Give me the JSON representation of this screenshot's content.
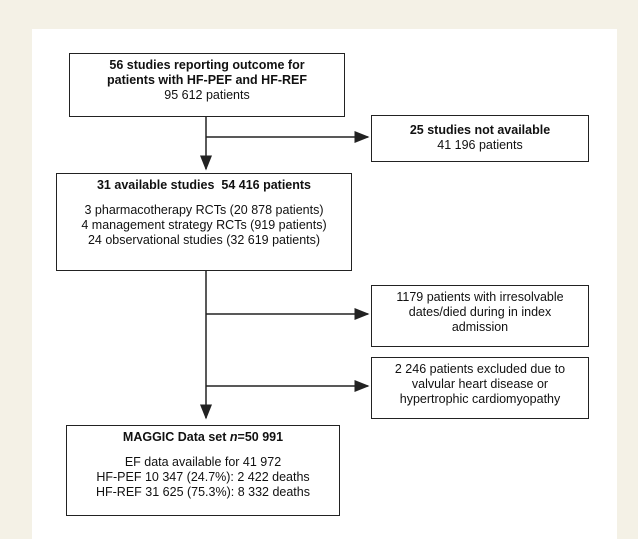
{
  "boxes": {
    "top": {
      "line1": "56 studies reporting outcome for",
      "line2": "patients with HF-PEF and HF-REF",
      "line3": "95 612 patients"
    },
    "not_available": {
      "line1": "25 studies not available",
      "line2": "41 196 patients"
    },
    "available": {
      "title_a": "31 available studies",
      "title_b": "54 416 patients",
      "items": [
        "3 pharmacotherapy RCTs (20 878 patients)",
        "4 management strategy RCTs (919 patients)",
        "24 observational studies (32 619 patients)"
      ]
    },
    "irresolvable": {
      "line1": "1179 patients with irresolvable",
      "line2": "dates/died during in index",
      "line3": "admission"
    },
    "excluded": {
      "line1": "2 246 patients excluded due to",
      "line2": "valvular heart disease or",
      "line3": "hypertrophic cardiomyopathy"
    },
    "maggic": {
      "title_prefix": "MAGGIC Data set ",
      "title_n": "n",
      "title_suffix": "=50 991",
      "ef": "EF data available for  41 972",
      "hfpef": "HF-PEF 10 347 (24.7%):  2 422 deaths",
      "hfref": "HF-REF 31 625 (75.3%):  8 332 deaths"
    }
  },
  "colors": {
    "background": "#f4f1e6",
    "panel": "#ffffff",
    "stroke": "#222222"
  }
}
